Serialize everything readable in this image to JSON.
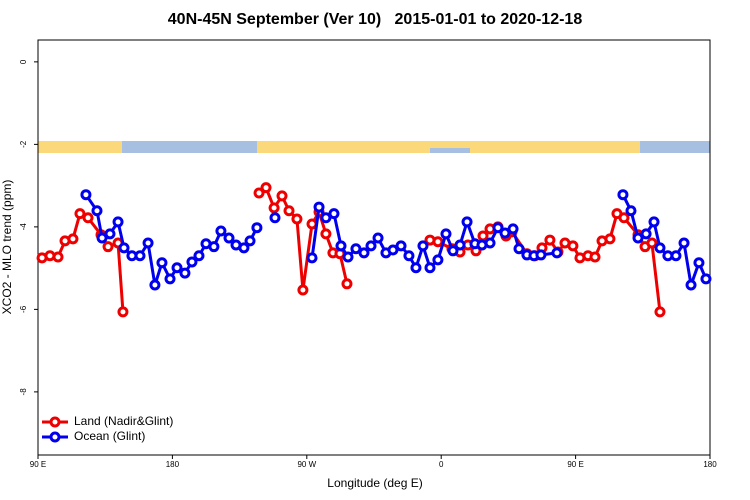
{
  "chart_data": {
    "type": "line",
    "title": "40N-45N September (Ver 10)   2015-01-01 to 2020-12-18",
    "xlabel": "Longitude (deg E)",
    "ylabel": "XCO2 - MLO trend (ppm)",
    "xlim": [
      90,
      540
    ],
    "xticks": [
      {
        "value": 90,
        "label": "90 E"
      },
      180,
      {
        "value": 270,
        "label": "90 W"
      },
      {
        "value": 360,
        "label": "0"
      },
      {
        "value": 450,
        "label": "90 E"
      },
      {
        "value": 540,
        "label": "180"
      }
    ],
    "ylim": [
      -9.53,
      0.53
    ],
    "yticks": [
      0,
      -2,
      -4,
      -6,
      -8
    ],
    "legend": "bottom-left",
    "series": [
      {
        "name": "Land (Nadir&Glint)",
        "color": "#ee0000",
        "x": [
          92.7,
          98,
          103.4,
          108.1,
          113.4,
          118.1,
          123.5,
          132.2,
          136.9,
          143.6,
          146.9,
          null,
          238,
          242.7,
          248.1,
          253.4,
          258.1,
          263.4,
          267.4,
          273.5,
          278.2,
          282.8,
          287.5,
          292.2,
          296.9,
          null,
          352.5,
          357.8,
          367.2,
          372.6,
          377.9,
          383.3,
          388,
          392.7,
          398,
          403.4,
          407.4,
          417.4,
          422.8,
          427.5,
          432.8,
          438.2,
          442.9,
          448.2,
          452.9,
          458.3,
          463,
          467.7,
          473,
          477.7,
          482.4,
          491.8,
          496.5,
          501.1,
          506.5
        ],
        "values": [
          -4.75,
          -4.7,
          -4.73,
          -4.34,
          -4.29,
          -3.68,
          -3.78,
          -4.19,
          -4.48,
          -4.39,
          -6.06,
          null,
          -3.18,
          -3.05,
          -3.54,
          -3.25,
          -3.61,
          -3.81,
          -5.53,
          -3.93,
          -3.64,
          -4.17,
          -4.63,
          -4.65,
          -5.38,
          null,
          -4.32,
          -4.36,
          -4.53,
          -4.61,
          -4.44,
          -4.58,
          -4.22,
          -4.05,
          -4.0,
          -4.22,
          -4.12,
          -4.65,
          -4.7,
          -4.51,
          -4.32,
          -4.61,
          -4.39,
          -4.46,
          -4.75,
          -4.7,
          -4.73,
          -4.34,
          -4.29,
          -3.68,
          -3.78,
          -4.19,
          -4.48,
          -4.39,
          -6.06
        ]
      },
      {
        "name": "Ocean (Glint)",
        "color": "#0000ee",
        "x": [
          122.1,
          129.5,
          132.9,
          138.2,
          143.6,
          147.6,
          152.9,
          158.3,
          163.7,
          168.3,
          173,
          178.4,
          183.1,
          188.4,
          193.1,
          197.8,
          202.5,
          207.8,
          212.5,
          217.9,
          222.6,
          227.9,
          232,
          236.6,
          null,
          248.7,
          null,
          273.5,
          278.2,
          282.8,
          288.2,
          292.9,
          297.6,
          302.9,
          308.3,
          313,
          317.7,
          323,
          327.7,
          333.1,
          338.4,
          343.1,
          347.8,
          352.5,
          357.8,
          363.2,
          367.9,
          372.6,
          377.3,
          382.6,
          387.3,
          392.7,
          398,
          402.7,
          408.1,
          412.1,
          417.4,
          422.1,
          426.8,
          437.5,
          null,
          481.7,
          487.1,
          491.8,
          497.2,
          502.5,
          506.5,
          511.8,
          517.2,
          522.6,
          527.3,
          532.6,
          537.3
        ],
        "values": [
          -3.22,
          -3.61,
          -4.27,
          -4.17,
          -3.88,
          -4.51,
          -4.7,
          -4.7,
          -4.39,
          -5.41,
          -4.87,
          -5.26,
          -4.99,
          -5.12,
          -4.85,
          -4.7,
          -4.41,
          -4.48,
          -4.1,
          -4.27,
          -4.44,
          -4.51,
          -4.34,
          -4.02,
          null,
          -3.78,
          null,
          -4.75,
          -3.52,
          -3.78,
          -3.68,
          -4.46,
          -4.73,
          -4.53,
          -4.63,
          -4.46,
          -4.27,
          -4.63,
          -4.56,
          -4.46,
          -4.7,
          -4.99,
          -4.46,
          -4.99,
          -4.8,
          -4.17,
          -4.58,
          -4.44,
          -3.88,
          -4.41,
          -4.44,
          -4.39,
          -4.02,
          -4.15,
          -4.05,
          -4.53,
          -4.68,
          -4.7,
          -4.68,
          -4.63,
          null,
          -3.22,
          -3.61,
          -4.27,
          -4.17,
          -3.88,
          -4.51,
          -4.7,
          -4.7,
          -4.39,
          -5.41,
          -4.87,
          -5.26
        ]
      }
    ]
  }
}
